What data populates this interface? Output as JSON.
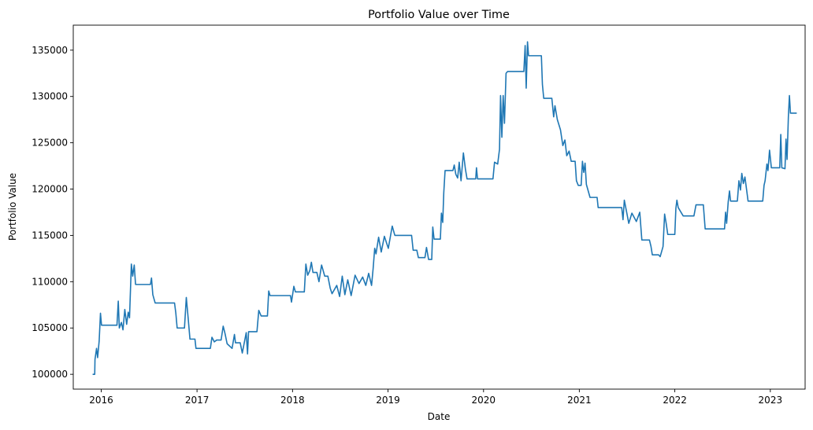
{
  "chart_data": {
    "type": "line",
    "title": "Portfolio Value over Time",
    "xlabel": "Date",
    "ylabel": "Portfolio Value",
    "x_ticks": [
      "2016",
      "2017",
      "2018",
      "2019",
      "2020",
      "2021",
      "2022",
      "2023"
    ],
    "y_ticks": [
      100000,
      105000,
      110000,
      115000,
      120000,
      125000,
      130000,
      135000
    ],
    "xlim": [
      "2015-09-16",
      "2023-05-14"
    ],
    "ylim": [
      98400,
      137700
    ],
    "grid": false,
    "legend": "none",
    "series": [
      {
        "color": "#1f77b4",
        "points": [
          [
            "2015-11-29",
            100000
          ],
          [
            "2015-12-07",
            100000
          ],
          [
            "2015-12-08",
            101600
          ],
          [
            "2015-12-14",
            102800
          ],
          [
            "2015-12-18",
            101800
          ],
          [
            "2015-12-24",
            103600
          ],
          [
            "2015-12-29",
            106600
          ],
          [
            "2016-01-02",
            105300
          ],
          [
            "2016-03-01",
            105300
          ],
          [
            "2016-03-06",
            107900
          ],
          [
            "2016-03-10",
            105000
          ],
          [
            "2016-03-18",
            105600
          ],
          [
            "2016-03-24",
            104800
          ],
          [
            "2016-03-31",
            107000
          ],
          [
            "2016-04-07",
            105400
          ],
          [
            "2016-04-13",
            106700
          ],
          [
            "2016-04-18",
            106100
          ],
          [
            "2016-04-25",
            111900
          ],
          [
            "2016-04-30",
            110600
          ],
          [
            "2016-05-06",
            111800
          ],
          [
            "2016-05-11",
            109700
          ],
          [
            "2016-07-07",
            109700
          ],
          [
            "2016-07-11",
            110400
          ],
          [
            "2016-07-16",
            108600
          ],
          [
            "2016-07-25",
            107700
          ],
          [
            "2016-10-07",
            107700
          ],
          [
            "2016-10-12",
            106600
          ],
          [
            "2016-10-17",
            105000
          ],
          [
            "2016-11-14",
            105000
          ],
          [
            "2016-11-21",
            108300
          ],
          [
            "2016-11-28",
            106100
          ],
          [
            "2016-12-05",
            103800
          ],
          [
            "2016-12-24",
            103800
          ],
          [
            "2016-12-28",
            102800
          ],
          [
            "2017-02-21",
            102800
          ],
          [
            "2017-02-27",
            104000
          ],
          [
            "2017-03-08",
            103500
          ],
          [
            "2017-03-17",
            103700
          ],
          [
            "2017-04-03",
            103700
          ],
          [
            "2017-04-11",
            105200
          ],
          [
            "2017-04-18",
            104400
          ],
          [
            "2017-04-26",
            103300
          ],
          [
            "2017-05-15",
            102800
          ],
          [
            "2017-05-24",
            104300
          ],
          [
            "2017-05-28",
            103400
          ],
          [
            "2017-06-15",
            103400
          ],
          [
            "2017-06-23",
            102300
          ],
          [
            "2017-07-08",
            104500
          ],
          [
            "2017-07-13",
            102200
          ],
          [
            "2017-07-17",
            104600
          ],
          [
            "2017-08-18",
            104600
          ],
          [
            "2017-08-25",
            106900
          ],
          [
            "2017-09-03",
            106300
          ],
          [
            "2017-09-27",
            106300
          ],
          [
            "2017-10-02",
            109000
          ],
          [
            "2017-10-07",
            108500
          ],
          [
            "2017-12-24",
            108500
          ],
          [
            "2017-12-28",
            107800
          ],
          [
            "2018-01-06",
            109500
          ],
          [
            "2018-01-12",
            108900
          ],
          [
            "2018-02-15",
            108900
          ],
          [
            "2018-02-21",
            111900
          ],
          [
            "2018-02-28",
            110700
          ],
          [
            "2018-03-08",
            111200
          ],
          [
            "2018-03-14",
            112100
          ],
          [
            "2018-03-20",
            111000
          ],
          [
            "2018-04-04",
            111000
          ],
          [
            "2018-04-12",
            110000
          ],
          [
            "2018-04-22",
            111800
          ],
          [
            "2018-05-04",
            110600
          ],
          [
            "2018-05-16",
            110600
          ],
          [
            "2018-05-25",
            109300
          ],
          [
            "2018-06-01",
            108700
          ],
          [
            "2018-06-19",
            109600
          ],
          [
            "2018-06-30",
            108400
          ],
          [
            "2018-07-10",
            110600
          ],
          [
            "2018-07-20",
            108600
          ],
          [
            "2018-07-31",
            110200
          ],
          [
            "2018-08-13",
            108500
          ],
          [
            "2018-08-28",
            110700
          ],
          [
            "2018-09-12",
            109800
          ],
          [
            "2018-09-26",
            110500
          ],
          [
            "2018-10-08",
            109600
          ],
          [
            "2018-10-19",
            110900
          ],
          [
            "2018-10-30",
            109600
          ],
          [
            "2018-11-05",
            111400
          ],
          [
            "2018-11-11",
            113600
          ],
          [
            "2018-11-16",
            113000
          ],
          [
            "2018-11-26",
            114800
          ],
          [
            "2018-12-06",
            113200
          ],
          [
            "2018-12-18",
            114900
          ],
          [
            "2019-01-02",
            113600
          ],
          [
            "2019-01-17",
            116000
          ],
          [
            "2019-01-27",
            115000
          ],
          [
            "2019-04-01",
            115000
          ],
          [
            "2019-04-07",
            113400
          ],
          [
            "2019-04-21",
            113400
          ],
          [
            "2019-04-27",
            112600
          ],
          [
            "2019-05-22",
            112600
          ],
          [
            "2019-05-28",
            113700
          ],
          [
            "2019-06-05",
            112400
          ],
          [
            "2019-06-17",
            112400
          ],
          [
            "2019-06-21",
            115900
          ],
          [
            "2019-06-26",
            114600
          ],
          [
            "2019-07-20",
            114600
          ],
          [
            "2019-07-24",
            117400
          ],
          [
            "2019-07-29",
            116400
          ],
          [
            "2019-08-02",
            119600
          ],
          [
            "2019-08-07",
            122000
          ],
          [
            "2019-09-06",
            122000
          ],
          [
            "2019-09-11",
            122600
          ],
          [
            "2019-09-17",
            121600
          ],
          [
            "2019-09-24",
            121200
          ],
          [
            "2019-09-30",
            122900
          ],
          [
            "2019-10-07",
            120900
          ],
          [
            "2019-10-16",
            123900
          ],
          [
            "2019-10-24",
            122100
          ],
          [
            "2019-10-30",
            121100
          ],
          [
            "2019-12-02",
            121100
          ],
          [
            "2019-12-05",
            122300
          ],
          [
            "2019-12-09",
            121100
          ],
          [
            "2020-02-06",
            121100
          ],
          [
            "2020-02-12",
            122900
          ],
          [
            "2020-02-24",
            122700
          ],
          [
            "2020-03-02",
            124300
          ],
          [
            "2020-03-06",
            130100
          ],
          [
            "2020-03-11",
            125600
          ],
          [
            "2020-03-16",
            130100
          ],
          [
            "2020-03-21",
            127100
          ],
          [
            "2020-03-27",
            132500
          ],
          [
            "2020-04-02",
            132700
          ],
          [
            "2020-06-03",
            132700
          ],
          [
            "2020-06-08",
            135500
          ],
          [
            "2020-06-12",
            130900
          ],
          [
            "2020-06-17",
            135900
          ],
          [
            "2020-06-21",
            134400
          ],
          [
            "2020-08-09",
            134400
          ],
          [
            "2020-08-13",
            131300
          ],
          [
            "2020-08-18",
            129800
          ],
          [
            "2020-09-18",
            129800
          ],
          [
            "2020-09-25",
            127800
          ],
          [
            "2020-09-30",
            129000
          ],
          [
            "2020-10-09",
            127500
          ],
          [
            "2020-10-21",
            126400
          ],
          [
            "2020-10-30",
            124700
          ],
          [
            "2020-11-07",
            125300
          ],
          [
            "2020-11-14",
            123600
          ],
          [
            "2020-11-23",
            124100
          ],
          [
            "2020-12-01",
            123000
          ],
          [
            "2020-12-16",
            123000
          ],
          [
            "2020-12-21",
            120900
          ],
          [
            "2020-12-28",
            120400
          ],
          [
            "2021-01-08",
            120400
          ],
          [
            "2021-01-13",
            123000
          ],
          [
            "2021-01-18",
            121800
          ],
          [
            "2021-01-23",
            122800
          ],
          [
            "2021-01-28",
            120500
          ],
          [
            "2021-02-11",
            119100
          ],
          [
            "2021-03-10",
            119100
          ],
          [
            "2021-03-14",
            118000
          ],
          [
            "2021-06-12",
            118000
          ],
          [
            "2021-06-17",
            116700
          ],
          [
            "2021-06-22",
            118800
          ],
          [
            "2021-07-01",
            117500
          ],
          [
            "2021-07-09",
            116300
          ],
          [
            "2021-07-21",
            117400
          ],
          [
            "2021-08-07",
            116500
          ],
          [
            "2021-08-20",
            117500
          ],
          [
            "2021-08-28",
            114500
          ],
          [
            "2021-09-26",
            114500
          ],
          [
            "2021-10-02",
            113800
          ],
          [
            "2021-10-07",
            112900
          ],
          [
            "2021-10-31",
            112900
          ],
          [
            "2021-11-06",
            112700
          ],
          [
            "2021-11-17",
            113800
          ],
          [
            "2021-11-23",
            117300
          ],
          [
            "2021-11-29",
            116300
          ],
          [
            "2021-12-05",
            115100
          ],
          [
            "2022-01-01",
            115100
          ],
          [
            "2022-01-05",
            117900
          ],
          [
            "2022-01-09",
            118800
          ],
          [
            "2022-01-14",
            118000
          ],
          [
            "2022-02-02",
            117100
          ],
          [
            "2022-03-15",
            117100
          ],
          [
            "2022-03-23",
            118300
          ],
          [
            "2022-04-20",
            118300
          ],
          [
            "2022-04-27",
            115700
          ],
          [
            "2022-07-10",
            115700
          ],
          [
            "2022-07-14",
            117500
          ],
          [
            "2022-07-18",
            116300
          ],
          [
            "2022-07-24",
            118600
          ],
          [
            "2022-07-29",
            119800
          ],
          [
            "2022-08-02",
            118700
          ],
          [
            "2022-08-28",
            118700
          ],
          [
            "2022-09-03",
            120900
          ],
          [
            "2022-09-09",
            119900
          ],
          [
            "2022-09-14",
            121700
          ],
          [
            "2022-09-20",
            120600
          ],
          [
            "2022-09-26",
            121300
          ],
          [
            "2022-10-02",
            120000
          ],
          [
            "2022-10-08",
            118700
          ],
          [
            "2022-12-03",
            118700
          ],
          [
            "2022-12-08",
            120400
          ],
          [
            "2022-12-12",
            120900
          ],
          [
            "2022-12-19",
            122700
          ],
          [
            "2022-12-23",
            122000
          ],
          [
            "2022-12-29",
            124200
          ],
          [
            "2023-01-05",
            122300
          ],
          [
            "2023-02-06",
            122300
          ],
          [
            "2023-02-10",
            125900
          ],
          [
            "2023-02-14",
            122300
          ],
          [
            "2023-02-26",
            122200
          ],
          [
            "2023-03-02",
            125400
          ],
          [
            "2023-03-06",
            123200
          ],
          [
            "2023-03-11",
            127800
          ],
          [
            "2023-03-15",
            130100
          ],
          [
            "2023-03-19",
            128200
          ],
          [
            "2023-04-12",
            128200
          ]
        ]
      }
    ]
  }
}
